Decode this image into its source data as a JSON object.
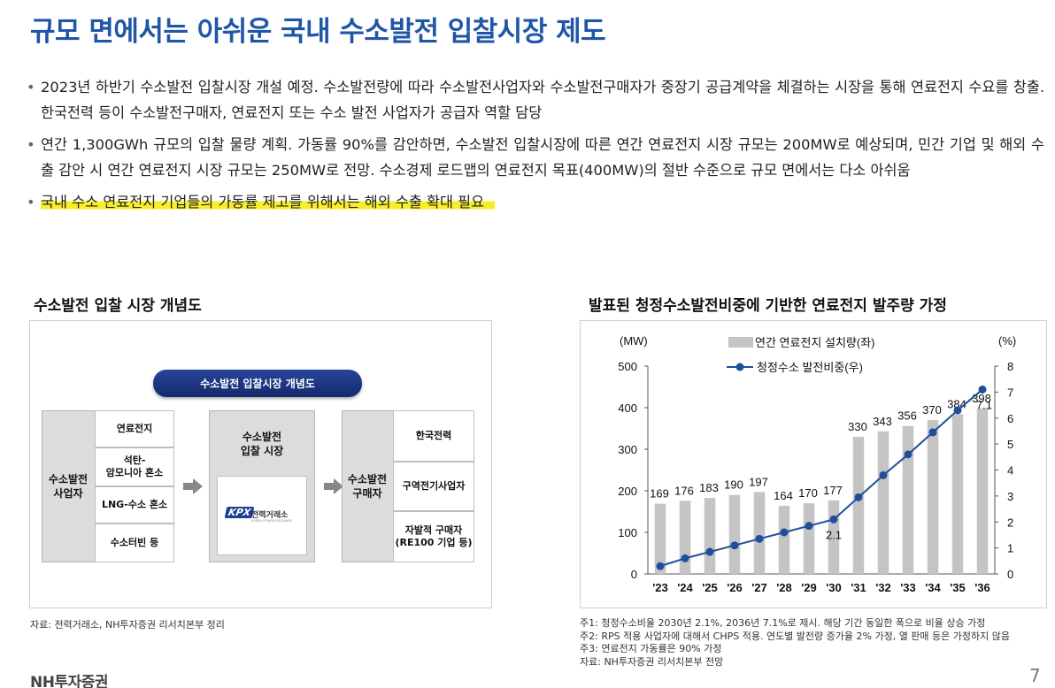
{
  "title": "규모 면에서는 아쉬운 국내 수소발전 입찰시장 제도",
  "bullets": [
    "2023년 하반기 수소발전 입찰시장 개설 예정. 수소발전량에 따라 수소발전사업자와 수소발전구매자가 중장기 공급계약을 체결하는 시장을 통해 연료전지 수요를 창출. 한국전력 등이 수소발전구매자, 연료전지 또는 수소 발전 사업자가 공급자 역할 담당",
    "연간 1,300GWh 규모의 입찰 물량 계획. 가동률 90%를 감안하면, 수소발전 입찰시장에 따른 연간 연료전지 시장 규모는 200MW로 예상되며, 민간 기업 및 해외 수출 감안 시 연간 연료전지 시장 규모는 250MW로 전망. 수소경제 로드맵의 연료전지 목표(400MW)의 절반 수준으로 규모 면에서는 다소 아쉬움",
    "국내 수소 연료전지 기업들의 가동률 제고를 위해서는 해외 수출 확대 필요"
  ],
  "highlight_color": "#f7ee2a",
  "left_section": {
    "title": "수소발전 입찰 시장 개념도",
    "source": "자료: 전력거래소, NH투자증권 리서치본부 정리",
    "diagram": {
      "banner": "수소발전 입찰시장 개념도",
      "supplier_label": "수소발전\n사업자",
      "supplier_items": [
        "연료전지",
        "석탄-\n암모니아 혼소",
        "LNG-수소 혼소",
        "수소터빈 등"
      ],
      "market_label": "수소발전\n입찰 시장",
      "kpx_logo": "KPX",
      "kpx_name": "전력거래소",
      "kpx_sub": "KOREA POWER EXCHANGE",
      "buyer_label": "수소발전\n구매자",
      "buyer_items": [
        "한국전력",
        "구역전기사업자",
        "자발적 구매자\n(RE100 기업 등)"
      ]
    }
  },
  "right_section": {
    "title": "발표된 청정수소발전비중에 기반한 연료전지 발주량 가정",
    "notes": [
      "주1: 청정수소비율 2030년 2.1%, 2036년 7.1%로 제시. 해당 기간 동일한 폭으로 비율 상승 가정",
      "주2: RPS 적용 사업자에 대해서 CHPS 적용. 연도별 발전량 증가율 2% 가정, 열 판매 등은 가정하지 않음",
      "주3: 연료전지 가동률은 90% 가정",
      "자료: NH투자증권 리서치본부 전망"
    ]
  },
  "chart_data": {
    "type": "bar",
    "categories": [
      "'23",
      "'24",
      "'25",
      "'26",
      "'27",
      "'28",
      "'29",
      "'30",
      "'31",
      "'32",
      "'33",
      "'34",
      "'35",
      "'36"
    ],
    "series": [
      {
        "name": "연간 연료전지 설치량(좌)",
        "type": "bar",
        "axis": "left",
        "values": [
          169,
          176,
          183,
          190,
          197,
          164,
          170,
          177,
          330,
          343,
          356,
          370,
          384,
          398
        ],
        "color": "#c4c4c4"
      },
      {
        "name": "청정수소 발전비중(우)",
        "type": "line",
        "axis": "right",
        "values": [
          0.3,
          0.6,
          0.85,
          1.1,
          1.35,
          1.6,
          1.85,
          2.1,
          2.95,
          3.8,
          4.6,
          5.45,
          6.3,
          7.1
        ],
        "color": "#1f4e9c"
      }
    ],
    "line_labels": {
      "7": "2.1",
      "13": "7.1"
    },
    "ylabel_left": "(MW)",
    "ylabel_right": "(%)",
    "ylim_left": [
      0,
      500
    ],
    "yticks_left": [
      0,
      100,
      200,
      300,
      400,
      500
    ],
    "ylim_right": [
      0,
      8
    ],
    "yticks_right": [
      0,
      1,
      2,
      3,
      4,
      5,
      6,
      7,
      8
    ],
    "legend_position": "top-center",
    "grid": false
  },
  "footer": {
    "logo": "NH투자증권",
    "page": "7"
  }
}
